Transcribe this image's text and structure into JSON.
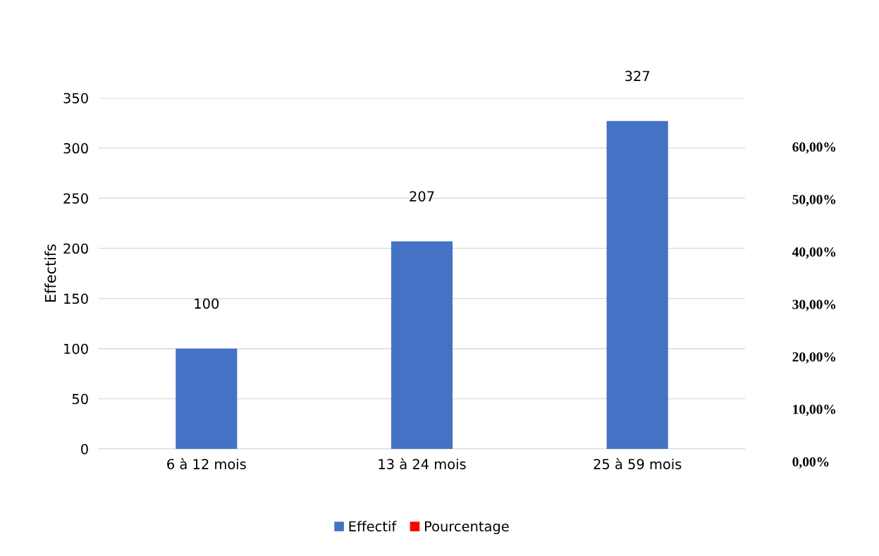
{
  "chart_data": {
    "type": "bar",
    "categories": [
      "6 à 12 mois",
      "13 à 24 mois",
      "25 à 59 mois"
    ],
    "series": [
      {
        "name": "Effectif",
        "color": "#4472c4",
        "values": [
          100,
          207,
          327
        ]
      },
      {
        "name": "Pourcentage",
        "color": "#ff0000",
        "values": [
          null,
          null,
          null
        ]
      }
    ],
    "ylabel": "Effectifs",
    "ylim": [
      0,
      350
    ],
    "yticks": [
      0,
      50,
      100,
      150,
      200,
      250,
      300,
      350
    ],
    "y2lim": [
      0,
      69.3
    ],
    "y2ticks": [
      {
        "value": 0,
        "label": "0,00%"
      },
      {
        "value": 10,
        "label": "10,00%"
      },
      {
        "value": 20,
        "label": "20,00%"
      },
      {
        "value": 30,
        "label": "30,00%"
      },
      {
        "value": 40,
        "label": "40,00%"
      },
      {
        "value": 50,
        "label": "50,00%"
      },
      {
        "value": 60,
        "label": "60,00%"
      }
    ],
    "grid": "y",
    "legend": "bottom",
    "data_labels": true
  }
}
